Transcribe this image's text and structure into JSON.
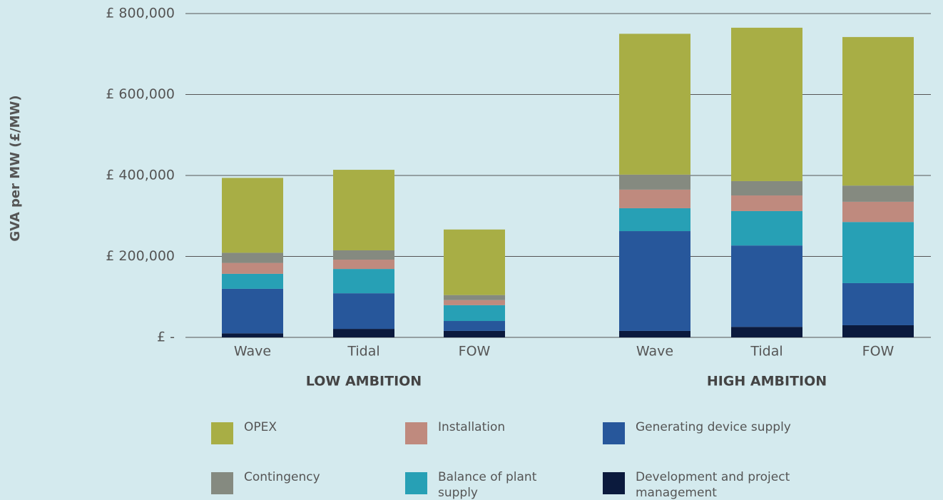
{
  "chart_data": {
    "type": "stacked_bar",
    "y_label": "GVA per MW (£/MW)",
    "categories": [
      "Wave",
      "Tidal",
      "FOW",
      "Wave",
      "Tidal",
      "FOW"
    ],
    "groups": [
      "LOW AMBITION",
      "HIGH AMBITION"
    ],
    "series": [
      {
        "name": "Development and project management",
        "color": "#0b1a3d",
        "values": [
          10000,
          21000,
          16000,
          16000,
          26000,
          30000
        ]
      },
      {
        "name": "Generating device supply",
        "color": "#27579b",
        "values": [
          110000,
          88000,
          24500,
          246500,
          201000,
          104000
        ]
      },
      {
        "name": "Balance of plant supply",
        "color": "#27a0b5",
        "values": [
          37000,
          60000,
          39000,
          56500,
          85000,
          151000
        ]
      },
      {
        "name": "Installation",
        "color": "#bf8a7e",
        "values": [
          27000,
          23000,
          12600,
          46000,
          38600,
          50000
        ]
      },
      {
        "name": "Contingency",
        "color": "#858a80",
        "values": [
          25000,
          23000,
          12400,
          37000,
          35400,
          40000
        ]
      },
      {
        "name": "OPEX",
        "color": "#a8ae45",
        "values": [
          185000,
          199000,
          162000,
          348000,
          379000,
          367000
        ]
      }
    ],
    "ylim": [
      0,
      800000
    ],
    "yticks": [
      {
        "value": 0,
        "label": "£ -"
      },
      {
        "value": 200000,
        "label": "£ 200,000"
      },
      {
        "value": 400000,
        "label": "£ 400,000"
      },
      {
        "value": 600000,
        "label": "£ 600,000"
      },
      {
        "value": 800000,
        "label": "£ 800,000"
      }
    ],
    "grid": true
  }
}
